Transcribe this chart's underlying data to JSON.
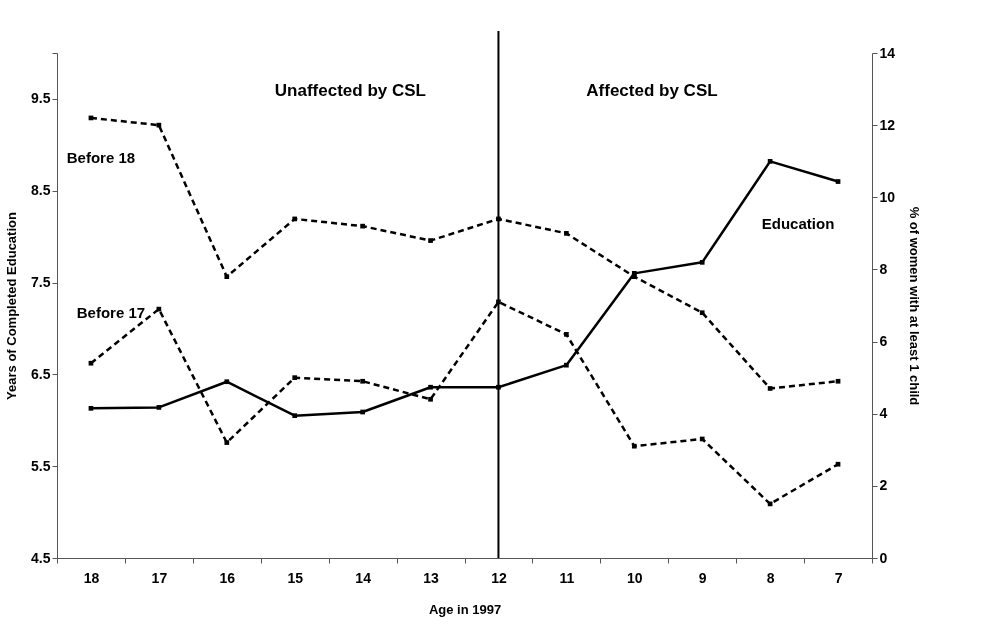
{
  "chart_data": {
    "type": "line",
    "xlabel": "Age in 1997",
    "ylabel": "Years of Completed Education",
    "y2label": "% of women with at least 1 child",
    "categories": [
      "18",
      "17",
      "16",
      "15",
      "14",
      "13",
      "12",
      "11",
      "10",
      "9",
      "8",
      "7"
    ],
    "series": [
      {
        "name": "Education",
        "color": "#000000",
        "line_style": "solid",
        "values": [
          6.13,
          6.14,
          6.42,
          6.05,
          6.09,
          6.36,
          6.36,
          6.6,
          7.6,
          7.72,
          8.82,
          8.6
        ]
      },
      {
        "name": "Before 18",
        "color": "#000000",
        "line_style": "dashed",
        "axis": "y2",
        "values": [
          12.2,
          12.0,
          7.8,
          9.4,
          9.2,
          8.8,
          9.4,
          9.0,
          7.8,
          6.8,
          4.7,
          4.9
        ]
      },
      {
        "name": "Before 17",
        "color": "#000000",
        "line_style": "dashed",
        "axis": "y2",
        "values": [
          5.4,
          6.9,
          3.2,
          5.0,
          4.9,
          4.4,
          7.1,
          6.2,
          3.1,
          3.3,
          1.5,
          2.6
        ]
      }
    ],
    "ylim": [
      4.5,
      10
    ],
    "yticks": [
      4.5,
      5.5,
      6.5,
      7.5,
      8.5,
      9.5,
      {
        "value": 10,
        "label": null
      }
    ],
    "y2lim": [
      0,
      14
    ],
    "y2ticks": [
      0,
      2,
      4,
      6,
      8,
      10,
      12,
      14
    ],
    "ref_lines": [
      {
        "axis": "x",
        "value": "12",
        "color": "#000000"
      }
    ],
    "annotations": [
      "Unaffected by CSL",
      "Affected by CSL"
    ],
    "marker": "square",
    "legend": false,
    "grid": false
  }
}
